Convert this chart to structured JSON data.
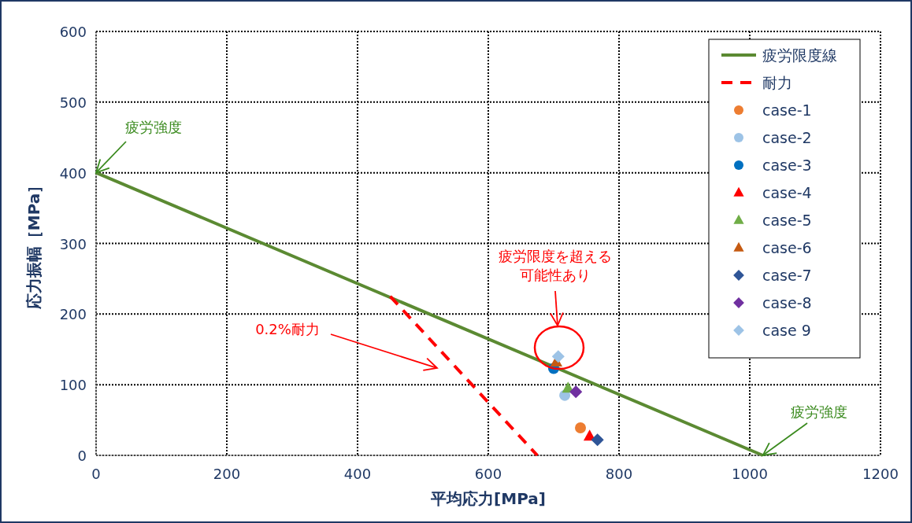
{
  "chart_data": {
    "type": "scatter",
    "xlabel": "平均応力[MPa]",
    "ylabel": "応力振幅［MPa］",
    "xlim": [
      0,
      1200
    ],
    "ylim": [
      0,
      600
    ],
    "xticks": [
      0,
      200,
      400,
      600,
      800,
      1000,
      1200
    ],
    "yticks": [
      0,
      100,
      200,
      300,
      400,
      500,
      600
    ],
    "grid": true,
    "legend": "top right",
    "series": [
      {
        "name": "疲労限度線",
        "type": "line",
        "color": "#5b8a32",
        "x": [
          0,
          1020
        ],
        "values": [
          400,
          0
        ],
        "line_style": "solid",
        "marker": "none"
      },
      {
        "name": "耐力",
        "type": "line",
        "color": "#ff0000",
        "x": [
          450,
          675
        ],
        "values": [
          225,
          0
        ],
        "line_style": "dashed",
        "marker": "none"
      },
      {
        "name": "case-1",
        "type": "scatter",
        "color": "#ed7d31",
        "x": [
          741
        ],
        "values": [
          39
        ],
        "marker": "circle"
      },
      {
        "name": "case-2",
        "type": "scatter",
        "color": "#9dc3e6",
        "x": [
          717
        ],
        "values": [
          85
        ],
        "marker": "circle"
      },
      {
        "name": "case-3",
        "type": "scatter",
        "color": "#0070c0",
        "x": [
          700
        ],
        "values": [
          123
        ],
        "marker": "circle"
      },
      {
        "name": "case-4",
        "type": "scatter",
        "color": "#ff0000",
        "x": [
          755
        ],
        "values": [
          27
        ],
        "marker": "triangle"
      },
      {
        "name": "case-5",
        "type": "scatter",
        "color": "#70ad47",
        "x": [
          722
        ],
        "values": [
          95
        ],
        "marker": "triangle"
      },
      {
        "name": "case-6",
        "type": "scatter",
        "color": "#c55a11",
        "x": [
          704
        ],
        "values": [
          132
        ],
        "marker": "triangle"
      },
      {
        "name": "case-7",
        "type": "scatter",
        "color": "#2f5597",
        "x": [
          767
        ],
        "values": [
          22
        ],
        "marker": "diamond"
      },
      {
        "name": "case-8",
        "type": "scatter",
        "color": "#7030a0",
        "x": [
          734
        ],
        "values": [
          90
        ],
        "marker": "diamond"
      },
      {
        "name": "case 9",
        "type": "scatter",
        "color": "#9dc3e6",
        "x": [
          707
        ],
        "values": [
          140
        ],
        "marker": "diamond"
      }
    ],
    "annotations": [
      {
        "text": "疲労強度",
        "x": 0,
        "y": 400
      },
      "0.2%耐力",
      "疲労限度を超える可能性あり",
      {
        "text": "疲労強度",
        "x": 1020,
        "y": 0
      }
    ]
  }
}
